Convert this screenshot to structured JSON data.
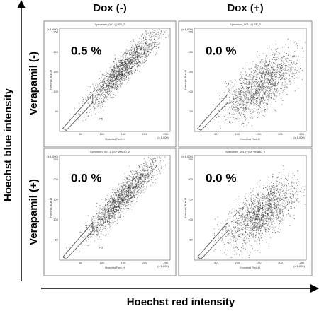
{
  "column_headers": [
    "Dox (-)",
    "Dox (+)"
  ],
  "row_labels": [
    "Verapamil (-)",
    "Verapamil (+)"
  ],
  "y_axis_label": "Hoechst blue intensity",
  "x_axis_label": "Hoechst red intensity",
  "x_ticks": [
    "50",
    "100",
    "150",
    "200",
    "250"
  ],
  "x_unit": "(x 1,000)",
  "y_ticks": [
    "50",
    "100",
    "150",
    "200",
    "250"
  ],
  "y_unit": "(x 1,000)",
  "plot_x_label": "Hoechst Red-H",
  "plot_y_label": "Hoechst Blue-H",
  "gate_label": "P5",
  "panels": [
    {
      "title": "Specimen_001-(-) SP_2",
      "percent": "0.5 %"
    },
    {
      "title": "Specimen_001-(+) SP_2",
      "percent": "0.0 %"
    },
    {
      "title": "Specimen_001-(-) SP vera30_2",
      "percent": "0.0 %"
    },
    {
      "title": "Specimen_001-(+)SP vera30_2",
      "percent": "0.0 %"
    }
  ]
}
